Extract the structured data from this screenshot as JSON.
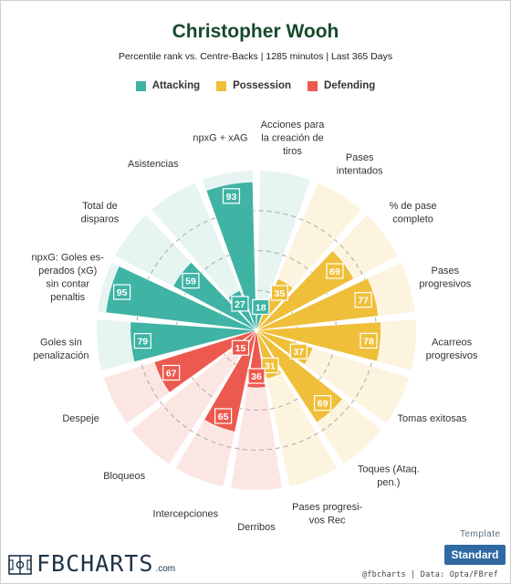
{
  "title": "Christopher Wooh",
  "subtitle": "Percentile rank vs. Centre-Backs | 1285 minutos | Last 365 Days",
  "legend": [
    {
      "label": "Attacking",
      "color": "#3fb3a4"
    },
    {
      "label": "Possession",
      "color": "#efbf3a"
    },
    {
      "label": "Defending",
      "color": "#ec5a4f"
    }
  ],
  "template": {
    "label": "Template",
    "button": "Standard"
  },
  "branding": {
    "logo": "FBCHARTS",
    "logo_suffix": ".com",
    "credits": "@fbcharts | Data: Opta/FBref"
  },
  "chart_data": {
    "type": "pie",
    "subtype": "polar-area",
    "scale": [
      0,
      100
    ],
    "grid": true,
    "grid_rings": [
      25,
      50,
      75
    ],
    "legend_position": "top",
    "colors": {
      "Attacking": "#3fb3a4",
      "Possession": "#efbf3a",
      "Defending": "#ec5a4f"
    },
    "background_colors": {
      "Attacking": "#e6f4f2",
      "Possession": "#fcf4df",
      "Defending": "#fbe6e4"
    },
    "categories": [
      "Acciones para la creación de tiros",
      "Pases intentados",
      "% de pase completo",
      "Pases progresivos",
      "Acarreos progresivos",
      "Tomas exitosas",
      "Toques (Ataq. pen.)",
      "Pases progresi-vos Rec",
      "Derribos",
      "Intercepciones",
      "Bloqueos",
      "Despeje",
      "Goles sin penalización",
      "npxG: Goles es-perados (xG) sin contar penaltis",
      "Total de disparos",
      "Asistencias",
      "npxG + xAG"
    ],
    "groups": [
      "Attacking",
      "Possession",
      "Possession",
      "Possession",
      "Possession",
      "Possession",
      "Possession",
      "Possession",
      "Defending",
      "Defending",
      "Defending",
      "Defending",
      "Attacking",
      "Attacking",
      "Attacking",
      "Attacking",
      "Attacking"
    ],
    "values": [
      18,
      35,
      69,
      77,
      78,
      37,
      69,
      31,
      36,
      65,
      15,
      67,
      79,
      95,
      59,
      27,
      93
    ],
    "label_lines": [
      [
        "Acciones para",
        "la creación de",
        "tiros"
      ],
      [
        "Pases",
        "intentados"
      ],
      [
        "% de pase",
        "completo"
      ],
      [
        "Pases",
        "progresivos"
      ],
      [
        "Acarreos",
        "progresivos"
      ],
      [
        "Tomas exitosas"
      ],
      [
        "Toques (Ataq.",
        "pen.)"
      ],
      [
        "Pases progresi-",
        "vos Rec"
      ],
      [
        "Derribos"
      ],
      [
        "Intercepciones"
      ],
      [
        "Bloqueos"
      ],
      [
        "Despeje"
      ],
      [
        "Goles sin",
        "penalización"
      ],
      [
        "npxG: Goles es-",
        "perados (xG)",
        "sin contar",
        "penaltis"
      ],
      [
        "Total de",
        "disparos"
      ],
      [
        "Asistencias"
      ],
      [
        "npxG + xAG"
      ]
    ]
  }
}
